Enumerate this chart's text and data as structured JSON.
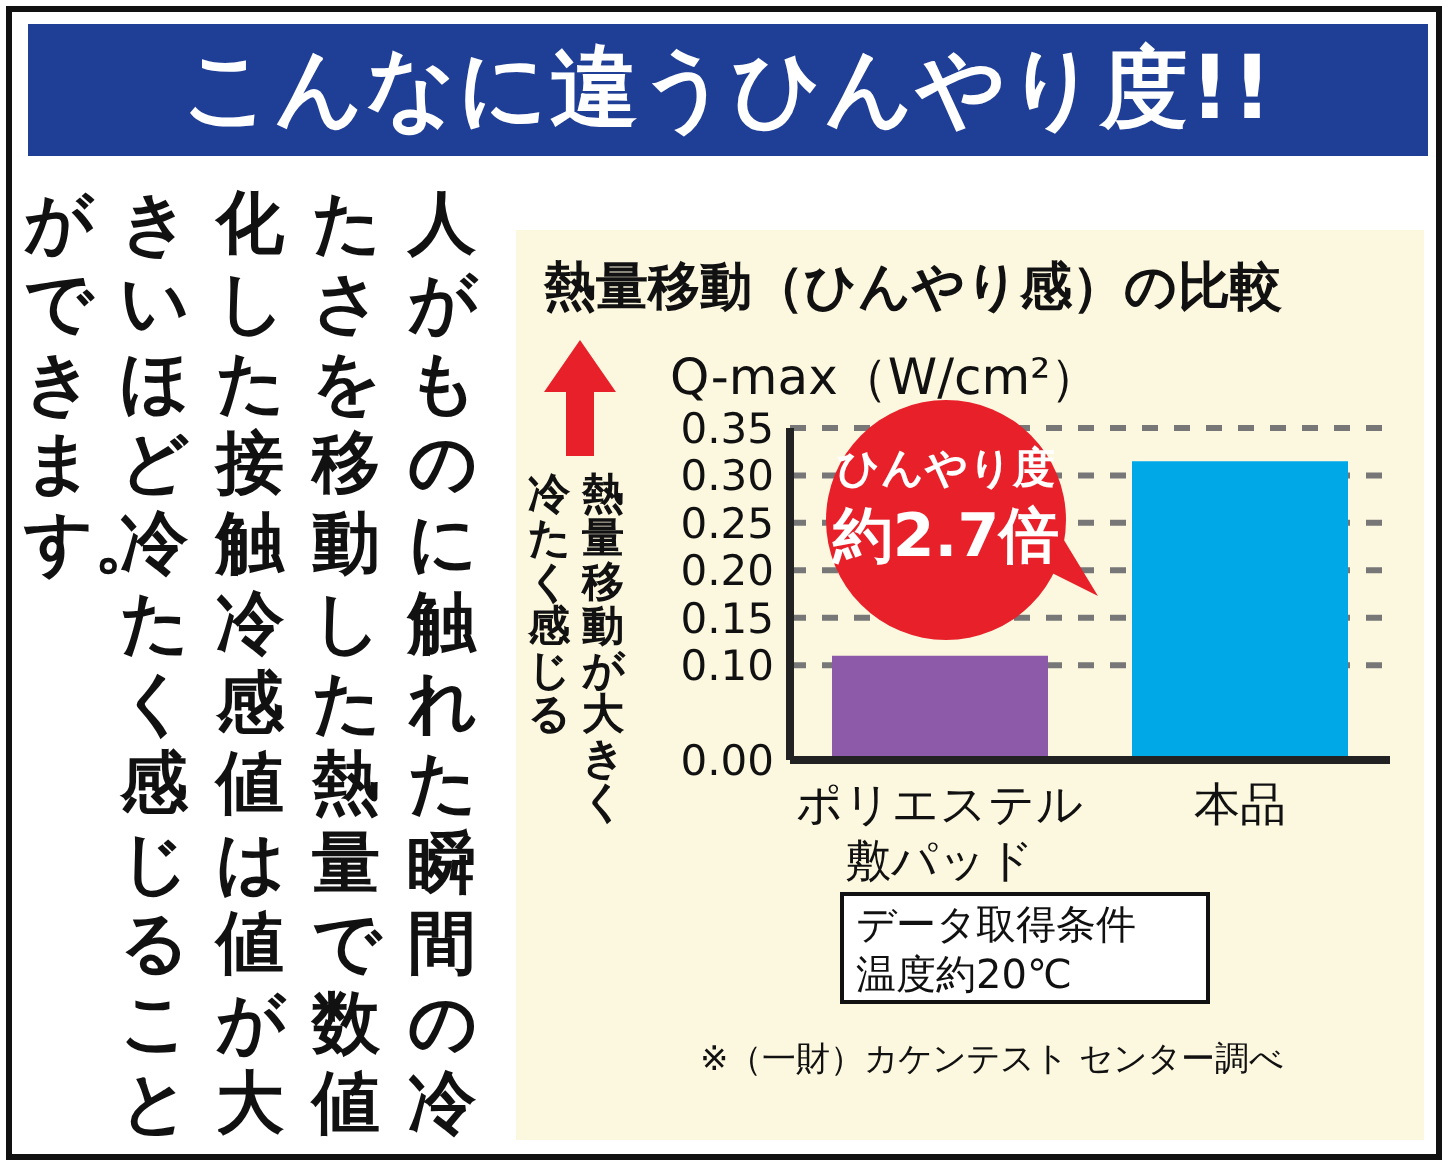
{
  "chart_data": {
    "type": "bar",
    "title": "こんなに違うひんやり度!!",
    "subtitle": "熱量移動（ひんやり感）の比較",
    "ylabel": "Q-max（W/cm²）",
    "categories": [
      "ポリエステル敷パッド",
      "本品"
    ],
    "values": [
      0.11,
      0.315
    ],
    "colors": [
      "#8c5aa8",
      "#00a8e8"
    ],
    "ylim": [
      0,
      0.35
    ],
    "yticks": [
      {
        "value": 0,
        "label": "0.00"
      },
      {
        "value": 0.1,
        "label": "0.10"
      },
      {
        "value": 0.15,
        "label": "0.15"
      },
      {
        "value": 0.2,
        "label": "0.20"
      },
      {
        "value": 0.25,
        "label": "0.25"
      },
      {
        "value": 0.3,
        "label": "0.30"
      },
      {
        "value": 0.35,
        "label": "0.35"
      }
    ],
    "grid": "y",
    "annotations": [
      "人がものに触れた瞬間の冷たさを移動した熱量で数値化した接触冷感値は値が大きいほど冷たく感じることができます。",
      "熱量移動が大きく冷たく感じる",
      "ひんやり度",
      "約2.7倍",
      "データ取得条件",
      "温度約20℃",
      "※（一財）カケンテスト センター調べ"
    ]
  }
}
